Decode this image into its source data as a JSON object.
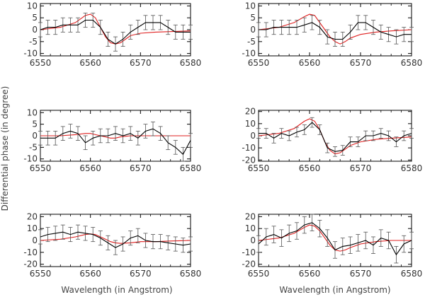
{
  "chart_data": {
    "type": "line",
    "ylabel": "Differential phase (in degree)",
    "xlabel": "Wavelength (in Angstrom)",
    "colors": {
      "observed": "#000000",
      "model": "#e02020",
      "errorbar": "#555555"
    },
    "panels": [
      {
        "xlim": [
          6550,
          6580
        ],
        "ylim": [
          -11,
          11
        ],
        "xticks": [
          6550,
          6560,
          6570,
          6580
        ],
        "yticks": [
          -10,
          -5,
          0,
          5,
          10
        ],
        "x": [
          6550,
          6551.5,
          6553,
          6554.5,
          6556,
          6557.5,
          6559,
          6560.5,
          6562,
          6563.5,
          6565,
          6566.5,
          6568,
          6569.5,
          6571,
          6572.5,
          6574,
          6575.5,
          6577,
          6578.5,
          6580
        ],
        "obs": [
          0,
          1,
          1,
          2,
          2,
          2,
          4,
          4,
          1,
          -4,
          -6,
          -4,
          -1,
          1,
          3,
          3,
          3,
          1,
          -1,
          -1,
          -1
        ],
        "err": [
          3,
          3,
          3,
          3,
          3,
          3,
          3,
          3,
          3,
          3,
          3,
          3,
          3,
          3,
          3,
          3,
          3,
          3,
          3,
          3,
          3
        ],
        "model_x": [
          6550,
          6554,
          6557,
          6559,
          6560,
          6561,
          6562,
          6563,
          6564,
          6565,
          6566,
          6567,
          6568,
          6570,
          6573,
          6576,
          6580
        ],
        "model_y": [
          0,
          1,
          3,
          6,
          6.5,
          5,
          1,
          -3,
          -5.5,
          -6,
          -5.5,
          -4,
          -2.5,
          -1.5,
          -1,
          -0.8,
          -0.5
        ]
      },
      {
        "xlim": [
          6550,
          6580
        ],
        "ylim": [
          -11,
          11
        ],
        "xticks": [
          6550,
          6560,
          6570,
          6580
        ],
        "yticks": [
          -10,
          -5,
          0,
          5,
          10
        ],
        "x": [
          6550,
          6551.5,
          6553,
          6554.5,
          6556,
          6557.5,
          6559,
          6560.5,
          6562,
          6563.5,
          6565,
          6566.5,
          6568,
          6569.5,
          6571,
          6572.5,
          6574,
          6575.5,
          6577,
          6578.5,
          6580
        ],
        "obs": [
          0,
          0,
          1,
          1,
          1,
          1,
          2,
          3,
          1,
          -3,
          -4,
          -4,
          -1,
          3,
          3,
          1,
          -1,
          -2,
          -3,
          -2,
          -2
        ],
        "err": [
          3,
          3,
          3,
          3,
          3,
          3,
          3,
          3,
          3,
          3,
          3,
          3,
          3,
          3,
          3,
          3,
          3,
          3,
          3,
          3,
          3
        ],
        "model_x": [
          6550,
          6554,
          6557,
          6559,
          6560,
          6561,
          6562,
          6563,
          6564,
          6565,
          6566,
          6567,
          6568,
          6570,
          6573,
          6576,
          6580
        ],
        "model_y": [
          0,
          1,
          3,
          5.5,
          6.5,
          6,
          3,
          0,
          -3,
          -5,
          -6,
          -5,
          -3.5,
          -2,
          -1,
          -0.5,
          0
        ]
      },
      {
        "xlim": [
          6550,
          6580
        ],
        "ylim": [
          -11,
          11
        ],
        "xticks": [
          6550,
          6560,
          6570,
          6580
        ],
        "yticks": [
          -10,
          -5,
          0,
          5,
          10
        ],
        "x": [
          6550,
          6551.5,
          6553,
          6554.5,
          6556,
          6557.5,
          6559,
          6560.5,
          6562,
          6563.5,
          6565,
          6566.5,
          6568,
          6569.5,
          6571,
          6572.5,
          6574,
          6575.5,
          6577,
          6578.5,
          6580
        ],
        "obs": [
          -1,
          -1,
          -1,
          1,
          2,
          1,
          -3,
          -1,
          0,
          0,
          1,
          0,
          1,
          -1,
          2,
          3,
          1,
          -3,
          -5,
          -8,
          -2
        ],
        "err": [
          3,
          3,
          3,
          3,
          3,
          3,
          3,
          3,
          3,
          3,
          3,
          3,
          3,
          3,
          3,
          3,
          3,
          3,
          3,
          3,
          3
        ],
        "model_x": [
          6550,
          6554,
          6557,
          6559,
          6560,
          6561,
          6562,
          6563,
          6564,
          6565,
          6566,
          6568,
          6570,
          6573,
          6576,
          6580
        ],
        "model_y": [
          0,
          0,
          0.5,
          1,
          1,
          0.5,
          0,
          -0.5,
          -1,
          -1,
          -0.5,
          0,
          0,
          0,
          0,
          0
        ]
      },
      {
        "xlim": [
          6550,
          6580
        ],
        "ylim": [
          -21,
          21
        ],
        "xticks": [
          6550,
          6560,
          6570,
          6580
        ],
        "yticks": [
          -20,
          -10,
          0,
          10,
          20
        ],
        "x": [
          6550,
          6551.5,
          6553,
          6554.5,
          6556,
          6557.5,
          6559,
          6560.5,
          6562,
          6563.5,
          6565,
          6566.5,
          6568,
          6569.5,
          6571,
          6572.5,
          6574,
          6575.5,
          6577,
          6578.5,
          6580
        ],
        "obs": [
          2,
          2,
          -2,
          2,
          0,
          3,
          5,
          11,
          5,
          -10,
          -13,
          -12,
          -5,
          -5,
          0,
          0,
          2,
          0,
          -5,
          0,
          2
        ],
        "err": [
          4,
          4,
          4,
          4,
          4,
          4,
          4,
          4,
          4,
          4,
          4,
          4,
          4,
          4,
          4,
          4,
          4,
          4,
          4,
          4,
          4
        ],
        "model_x": [
          6550,
          6554,
          6557,
          6559,
          6560,
          6561,
          6562,
          6563,
          6564,
          6565,
          6566,
          6567,
          6568,
          6570,
          6573,
          6576,
          6580
        ],
        "model_y": [
          0,
          2,
          6,
          12,
          14,
          12,
          5,
          -5,
          -12,
          -15,
          -14,
          -11,
          -8,
          -5,
          -3,
          -2,
          -1
        ]
      },
      {
        "xlim": [
          6550,
          6580
        ],
        "ylim": [
          -22,
          22
        ],
        "xticks": [
          6550,
          6560,
          6570,
          6580
        ],
        "yticks": [
          -20,
          -10,
          0,
          10,
          20
        ],
        "x": [
          6550,
          6551.5,
          6553,
          6554.5,
          6556,
          6557.5,
          6559,
          6560.5,
          6562,
          6563.5,
          6565,
          6566.5,
          6568,
          6569.5,
          6571,
          6572.5,
          6574,
          6575.5,
          6577,
          6578.5,
          6580
        ],
        "obs": [
          3,
          5,
          6,
          7,
          5,
          7,
          6,
          5,
          2,
          -2,
          -6,
          -3,
          2,
          4,
          0,
          -1,
          -1,
          -2,
          -3,
          -4,
          -3
        ],
        "err": [
          6,
          6,
          6,
          6,
          6,
          6,
          6,
          6,
          6,
          6,
          6,
          6,
          6,
          6,
          6,
          6,
          6,
          6,
          6,
          6,
          6
        ],
        "model_x": [
          6550,
          6554,
          6557,
          6559,
          6560,
          6561,
          6562,
          6563,
          6564,
          6565,
          6566,
          6568,
          6570,
          6573,
          6576,
          6580
        ],
        "model_y": [
          0,
          1,
          3,
          5,
          5.5,
          5,
          3,
          1,
          -1,
          -2,
          -2.5,
          -2,
          -1,
          -1,
          -0.5,
          0
        ]
      },
      {
        "xlim": [
          6550,
          6580
        ],
        "ylim": [
          -22,
          22
        ],
        "xticks": [
          6550,
          6560,
          6570,
          6580
        ],
        "yticks": [
          -20,
          -10,
          0,
          10,
          20
        ],
        "x": [
          6550,
          6551.5,
          6553,
          6554.5,
          6556,
          6557.5,
          6559,
          6560.5,
          6562,
          6563.5,
          6565,
          6566.5,
          6568,
          6569.5,
          6571,
          6572.5,
          6574,
          6575.5,
          6577,
          6578.5,
          6580
        ],
        "obs": [
          -3,
          3,
          5,
          2,
          6,
          8,
          13,
          15,
          10,
          2,
          -8,
          -5,
          -4,
          -2,
          0,
          -4,
          2,
          0,
          -12,
          -3,
          0
        ],
        "err": [
          7,
          7,
          7,
          7,
          7,
          7,
          7,
          7,
          7,
          7,
          7,
          7,
          7,
          7,
          7,
          7,
          7,
          7,
          7,
          7,
          7
        ],
        "model_x": [
          6550,
          6554,
          6557,
          6559,
          6560,
          6561,
          6562,
          6563,
          6564,
          6565,
          6566,
          6567,
          6568,
          6570,
          6573,
          6576,
          6580
        ],
        "model_y": [
          0,
          2,
          6,
          11,
          13,
          12,
          8,
          2,
          -4,
          -8,
          -9,
          -8,
          -6,
          -3,
          -1,
          0,
          0
        ]
      }
    ]
  }
}
